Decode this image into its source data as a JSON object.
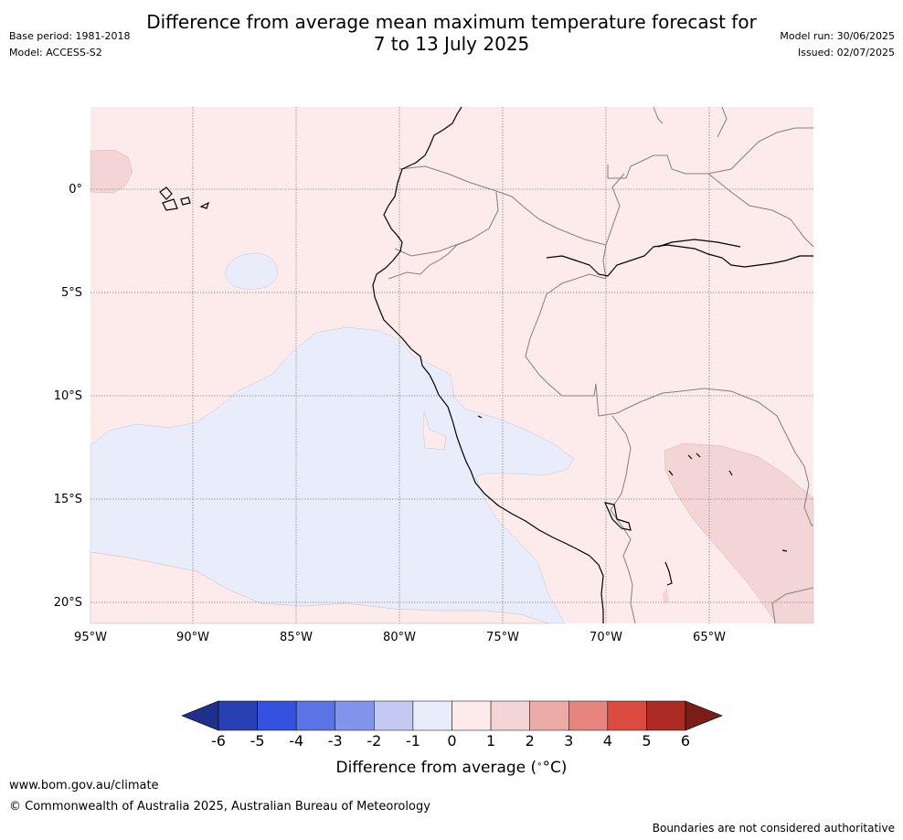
{
  "header": {
    "title_line1": "Difference from average mean maximum temperature forecast for",
    "title_line2": "7 to 13 July 2025",
    "base_period": "Base period: 1981-2018",
    "model": "Model: ACCESS-S2",
    "model_run": "Model run: 30/06/2025",
    "issued": "Issued: 02/07/2025"
  },
  "map": {
    "lon_labels": [
      "95°W",
      "90°W",
      "85°W",
      "80°W",
      "75°W",
      "70°W",
      "65°W"
    ],
    "lat_labels": [
      "0°",
      "5°S",
      "10°S",
      "15°S",
      "20°S"
    ],
    "anomaly_colors": {
      "background_0_to_1": "#fcebea",
      "minus1_to_0": "#e8ecfb",
      "1_to_2": "#f2d5d4"
    },
    "coastline_color": "#000000",
    "border_color": "#808080",
    "gridline_color": "#888888"
  },
  "colorbar": {
    "ticks": [
      "-6",
      "-5",
      "-4",
      "-3",
      "-2",
      "-1",
      "0",
      "1",
      "2",
      "3",
      "4",
      "5",
      "6"
    ],
    "colors": [
      "#1f2f8c",
      "#2740b4",
      "#3452e0",
      "#5a73e6",
      "#8193eb",
      "#c3c9f3",
      "#e8ecfb",
      "#fcebea",
      "#f2d5d4",
      "#edaba7",
      "#e6857e",
      "#db4b3f",
      "#ac2b22",
      "#7a1c18"
    ],
    "label": "Difference from average (",
    "label_unit": "°C)"
  },
  "footer": {
    "url": "www.bom.gov.au/climate",
    "copyright": "© Commonwealth of Australia 2025, Australian Bureau of Meteorology",
    "note": "Boundaries are not considered authoritative"
  }
}
